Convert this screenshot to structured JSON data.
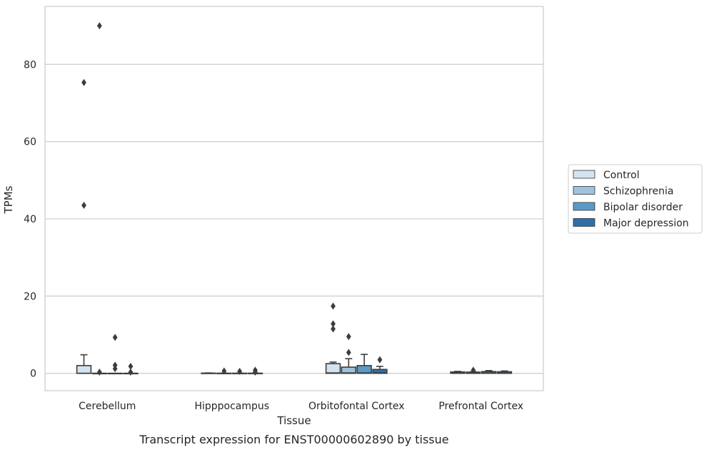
{
  "chart_data": {
    "type": "boxplot",
    "title": "Transcript expression for ENST00000602890 by tissue",
    "xlabel": "Tissue",
    "ylabel": "TPMs",
    "ylim": [
      -4.5,
      95
    ],
    "yticks": [
      0,
      20,
      40,
      60,
      80
    ],
    "grid": "horizontal",
    "legend_placement": "right",
    "categories": [
      "Cerebellum",
      "Hipppocampus",
      "Orbitofontal Cortex",
      "Prefrontal Cortex"
    ],
    "series": [
      {
        "name": "Control",
        "color": "#d4e3f0",
        "boxes": [
          {
            "q1": 0,
            "median": 0,
            "q3": 2.0,
            "whisker_low": 0,
            "whisker_high": 4.8,
            "outliers": [
              43.5,
              75.3
            ]
          },
          {
            "q1": 0,
            "median": 0,
            "q3": 0.05,
            "whisker_low": 0,
            "whisker_high": 0.1,
            "outliers": []
          },
          {
            "q1": 0,
            "median": 0.1,
            "q3": 2.5,
            "whisker_low": 0,
            "whisker_high": 2.9,
            "outliers": [
              11.5,
              12.8,
              17.4
            ]
          },
          {
            "q1": 0,
            "median": 0.1,
            "q3": 0.35,
            "whisker_low": 0,
            "whisker_high": 0.5,
            "outliers": []
          }
        ]
      },
      {
        "name": "Schizophrenia",
        "color": "#9dc3df",
        "boxes": [
          {
            "q1": 0,
            "median": 0,
            "q3": 0,
            "whisker_low": 0,
            "whisker_high": 0,
            "outliers": [
              0.3,
              90.0
            ]
          },
          {
            "q1": 0,
            "median": 0,
            "q3": 0.02,
            "whisker_low": 0,
            "whisker_high": 0.05,
            "outliers": [
              0.6
            ]
          },
          {
            "q1": 0,
            "median": 0.1,
            "q3": 1.6,
            "whisker_low": 0,
            "whisker_high": 3.8,
            "outliers": [
              5.4,
              9.5
            ]
          },
          {
            "q1": 0,
            "median": 0.05,
            "q3": 0.3,
            "whisker_low": 0,
            "whisker_high": 0.4,
            "outliers": [
              0.8
            ]
          }
        ]
      },
      {
        "name": "Bipolar disorder",
        "color": "#5a9ac7",
        "boxes": [
          {
            "q1": 0,
            "median": 0,
            "q3": 0,
            "whisker_low": 0,
            "whisker_high": 0,
            "outliers": [
              1.2,
              2.1,
              9.3
            ]
          },
          {
            "q1": 0,
            "median": 0,
            "q3": 0.02,
            "whisker_low": 0,
            "whisker_high": 0.05,
            "outliers": [
              0.5
            ]
          },
          {
            "q1": 0,
            "median": 0.1,
            "q3": 2.0,
            "whisker_low": 0,
            "whisker_high": 4.9,
            "outliers": []
          },
          {
            "q1": 0,
            "median": 0.1,
            "q3": 0.45,
            "whisker_low": 0,
            "whisker_high": 0.7,
            "outliers": []
          }
        ]
      },
      {
        "name": "Major depression",
        "color": "#2e6fa8",
        "boxes": [
          {
            "q1": 0,
            "median": 0,
            "q3": 0,
            "whisker_low": 0,
            "whisker_high": 0,
            "outliers": [
              0.3,
              1.8
            ]
          },
          {
            "q1": 0,
            "median": 0,
            "q3": 0.02,
            "whisker_low": 0,
            "whisker_high": 0.05,
            "outliers": [
              0.3,
              0.8
            ]
          },
          {
            "q1": 0,
            "median": 0.1,
            "q3": 1.0,
            "whisker_low": 0,
            "whisker_high": 1.8,
            "outliers": [
              3.5
            ]
          },
          {
            "q1": 0,
            "median": 0.05,
            "q3": 0.4,
            "whisker_low": 0,
            "whisker_high": 0.6,
            "outliers": []
          }
        ]
      }
    ]
  }
}
